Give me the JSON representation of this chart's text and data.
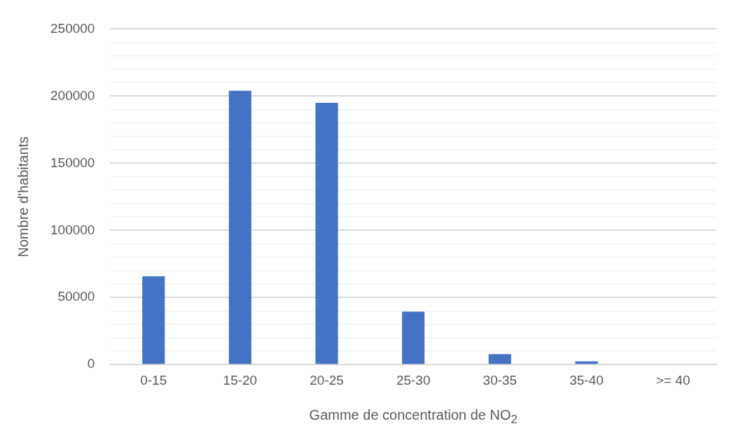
{
  "chart_data": {
    "type": "bar",
    "xlabel": "Gamme de concentration de NO$_{2}$",
    "ylabel": "Nombre d'habitants",
    "categories": [
      "0-15",
      "15-20",
      "20-25",
      "25-30",
      "30-35",
      "35-40",
      ">= 40"
    ],
    "values": [
      65700,
      204000,
      195000,
      39500,
      7800,
      2500,
      0
    ],
    "color": "#4472c4",
    "ylim": [
      0,
      250000
    ],
    "yticks": [
      0,
      {
        "value": 10000,
        "label": null
      },
      {
        "value": 20000,
        "label": null
      },
      {
        "value": 30000,
        "label": null
      },
      {
        "value": 40000,
        "label": null
      },
      50000,
      {
        "value": 60000,
        "label": null
      },
      {
        "value": 70000,
        "label": null
      },
      {
        "value": 80000,
        "label": null
      },
      {
        "value": 90000,
        "label": null
      },
      100000,
      {
        "value": 110000,
        "label": null
      },
      {
        "value": 120000,
        "label": null
      },
      {
        "value": 130000,
        "label": null
      },
      {
        "value": 140000,
        "label": null
      },
      150000,
      {
        "value": 160000,
        "label": null
      },
      {
        "value": 170000,
        "label": null
      },
      {
        "value": 180000,
        "label": null
      },
      {
        "value": 190000,
        "label": null
      },
      200000,
      {
        "value": 210000,
        "label": null
      },
      {
        "value": 220000,
        "label": null
      },
      {
        "value": 230000,
        "label": null
      },
      {
        "value": 240000,
        "label": null
      },
      250000
    ],
    "grid": "y"
  }
}
